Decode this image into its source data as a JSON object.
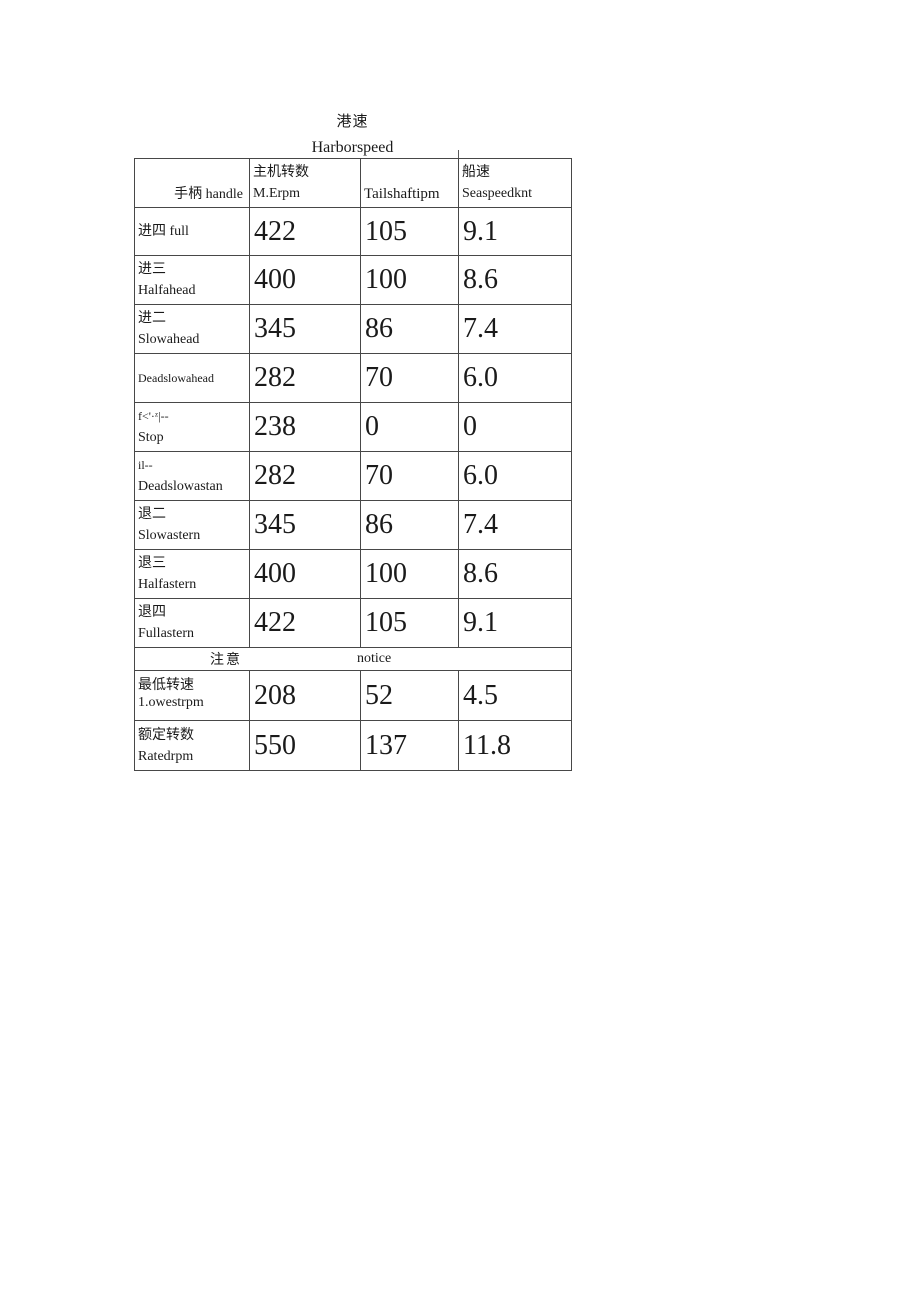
{
  "titles": {
    "cn": "港速",
    "en": "Harborspeed"
  },
  "table": {
    "headers": {
      "handle": "手柄 handle",
      "main_engine_cn": "主机转数",
      "main_engine_en": "M.Erpm",
      "tailshaft": "Tailshaftipm",
      "sea_speed_cn": "船速",
      "sea_speed_en": "Seaspeedknt"
    },
    "rows": [
      {
        "type": "data",
        "lines": [
          {
            "t": "进四 full"
          }
        ],
        "values": [
          "422",
          "105",
          "9.1"
        ]
      },
      {
        "type": "data",
        "lines": [
          {
            "t": "进三"
          },
          {
            "t": "Halfahead"
          }
        ],
        "values": [
          "400",
          "100",
          "8.6"
        ]
      },
      {
        "type": "data",
        "lines": [
          {
            "t": "进二"
          },
          {
            "t": "Slowahead"
          }
        ],
        "values": [
          "345",
          "86",
          "7.4"
        ]
      },
      {
        "type": "data",
        "lines": [
          {
            "t": "Deadslowahead",
            "small": true
          }
        ],
        "values": [
          "282",
          "70",
          "6.0"
        ]
      },
      {
        "type": "data",
        "lines": [
          {
            "t": "f<'·ᶻ|--",
            "small": true
          },
          {
            "t": "Stop"
          }
        ],
        "values": [
          "238",
          "0",
          "0"
        ]
      },
      {
        "type": "data",
        "lines": [
          {
            "t": "il--",
            "small": true
          },
          {
            "t": "Deadslowastan"
          }
        ],
        "values": [
          "282",
          "70",
          "6.0"
        ]
      },
      {
        "type": "data",
        "lines": [
          {
            "t": "退二"
          },
          {
            "t": "Slowastern"
          }
        ],
        "values": [
          "345",
          "86",
          "7.4"
        ]
      },
      {
        "type": "data",
        "lines": [
          {
            "t": "退三"
          },
          {
            "t": "Halfastern"
          }
        ],
        "values": [
          "400",
          "100",
          "8.6"
        ]
      },
      {
        "type": "data",
        "lines": [
          {
            "t": "退四"
          },
          {
            "t": "Fullastern"
          }
        ],
        "values": [
          "422",
          "105",
          "9.1"
        ]
      },
      {
        "type": "notice",
        "cn": "注意",
        "en": "notice"
      },
      {
        "type": "data",
        "tight": true,
        "lines": [
          {
            "t": "最低转速"
          },
          {
            "t": "1.owestrpm"
          }
        ],
        "values": [
          "208",
          "52",
          "4.5"
        ]
      },
      {
        "type": "data",
        "lines": [
          {
            "t": "额定转数"
          },
          {
            "t": "Ratedrpm"
          }
        ],
        "values": [
          "550",
          "137",
          "11.8"
        ]
      }
    ]
  },
  "colors": {
    "background": "#ffffff",
    "text": "#1a1a1a",
    "table_border": "#474747"
  }
}
